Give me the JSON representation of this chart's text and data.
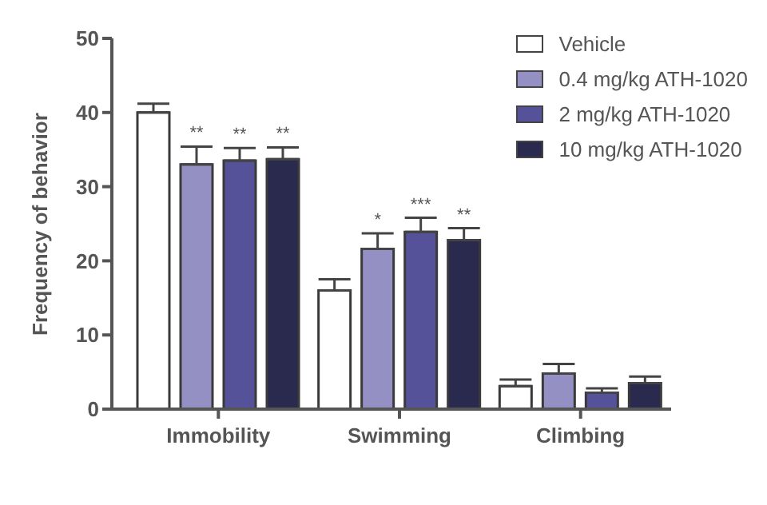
{
  "chart_data": {
    "type": "bar",
    "ylabel": "Frequency of behavior",
    "categories": [
      "Immobility",
      "Swimming",
      "Climbing"
    ],
    "series": [
      {
        "name": "Vehicle",
        "color": "#ffffff",
        "values": [
          40.0,
          16.0,
          3.1
        ],
        "errors": [
          [
            40.0,
            41.2
          ],
          [
            16.0,
            17.5
          ],
          [
            3.1,
            4.0
          ]
        ]
      },
      {
        "name": "0.4 mg/kg ATH-1020",
        "color": "#9490c4",
        "values": [
          33.0,
          21.6,
          4.8
        ],
        "errors": [
          [
            33.0,
            35.4
          ],
          [
            21.6,
            23.7
          ],
          [
            4.8,
            6.1
          ]
        ],
        "value_labels": [
          "**",
          "*",
          null
        ]
      },
      {
        "name": "2 mg/kg ATH-1020",
        "color": "#55529a",
        "values": [
          33.5,
          23.9,
          2.2
        ],
        "errors": [
          [
            33.5,
            35.2
          ],
          [
            23.9,
            25.8
          ],
          [
            2.2,
            2.8
          ]
        ],
        "value_labels": [
          "**",
          "***",
          null
        ]
      },
      {
        "name": "10 mg/kg ATH-1020",
        "color": "#2a2a4e",
        "values": [
          33.7,
          22.8,
          3.5
        ],
        "errors": [
          [
            33.7,
            35.3
          ],
          [
            22.8,
            24.4
          ],
          [
            3.5,
            4.4
          ]
        ],
        "value_labels": [
          "**",
          "**",
          null
        ]
      }
    ],
    "ylim": [
      0,
      50
    ],
    "yticks": [
      0,
      10,
      20,
      30,
      40,
      50
    ],
    "grid": false,
    "legend": "top right"
  }
}
